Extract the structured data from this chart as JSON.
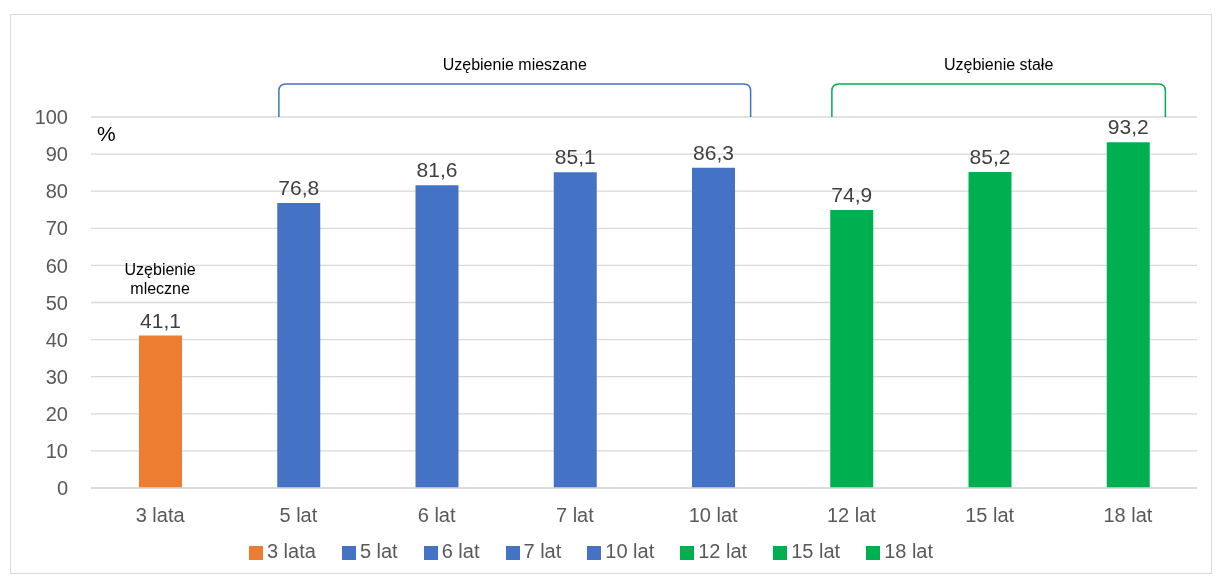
{
  "chart_data": {
    "type": "bar",
    "ylabel": "%",
    "categories": [
      "3 lata",
      "5 lat",
      "6 lat",
      "7 lat",
      "10 lat",
      "12 lat",
      "15 lat",
      "18 lat"
    ],
    "series": [
      {
        "name": "3 lata",
        "color": "#ed7d31",
        "values": [
          41.1,
          null,
          null,
          null,
          null,
          null,
          null,
          null
        ],
        "value_labels": [
          "41,1",
          null,
          null,
          null,
          null,
          null,
          null,
          null
        ]
      },
      {
        "name": "5 lat",
        "color": "#4472c4",
        "values": [
          null,
          76.8,
          null,
          null,
          null,
          null,
          null,
          null
        ],
        "value_labels": [
          null,
          "76,8",
          null,
          null,
          null,
          null,
          null,
          null
        ]
      },
      {
        "name": "6 lat",
        "color": "#4472c4",
        "values": [
          null,
          null,
          81.6,
          null,
          null,
          null,
          null,
          null
        ],
        "value_labels": [
          null,
          null,
          "81,6",
          null,
          null,
          null,
          null,
          null
        ]
      },
      {
        "name": "7 lat",
        "color": "#4472c4",
        "values": [
          null,
          null,
          null,
          85.1,
          null,
          null,
          null,
          null
        ],
        "value_labels": [
          null,
          null,
          null,
          "85,1",
          null,
          null,
          null,
          null
        ]
      },
      {
        "name": "10 lat",
        "color": "#4472c4",
        "values": [
          null,
          null,
          null,
          null,
          86.3,
          null,
          null,
          null
        ],
        "value_labels": [
          null,
          null,
          null,
          null,
          "86,3",
          null,
          null,
          null
        ]
      },
      {
        "name": "12 lat",
        "color": "#00b050",
        "values": [
          null,
          null,
          null,
          null,
          null,
          74.9,
          null,
          null
        ],
        "value_labels": [
          null,
          null,
          null,
          null,
          null,
          "74,9",
          null,
          null
        ]
      },
      {
        "name": "15 lat",
        "color": "#00b050",
        "values": [
          null,
          null,
          null,
          null,
          null,
          null,
          85.2,
          null
        ],
        "value_labels": [
          null,
          null,
          null,
          null,
          null,
          null,
          "85,2",
          null
        ]
      },
      {
        "name": "18 lat",
        "color": "#00b050",
        "values": [
          null,
          null,
          null,
          null,
          null,
          null,
          null,
          93.2
        ],
        "value_labels": [
          null,
          null,
          null,
          null,
          null,
          null,
          null,
          "93,2"
        ]
      }
    ],
    "ylim": [
      0,
      100
    ],
    "yticks": [
      0,
      10,
      20,
      30,
      40,
      50,
      60,
      70,
      80,
      90,
      100
    ],
    "grid": "y",
    "legend": "bottom",
    "annotations": [
      "Uzębienie mleczne",
      "Uzębienie mieszane",
      "Uzębienie stałe"
    ]
  }
}
